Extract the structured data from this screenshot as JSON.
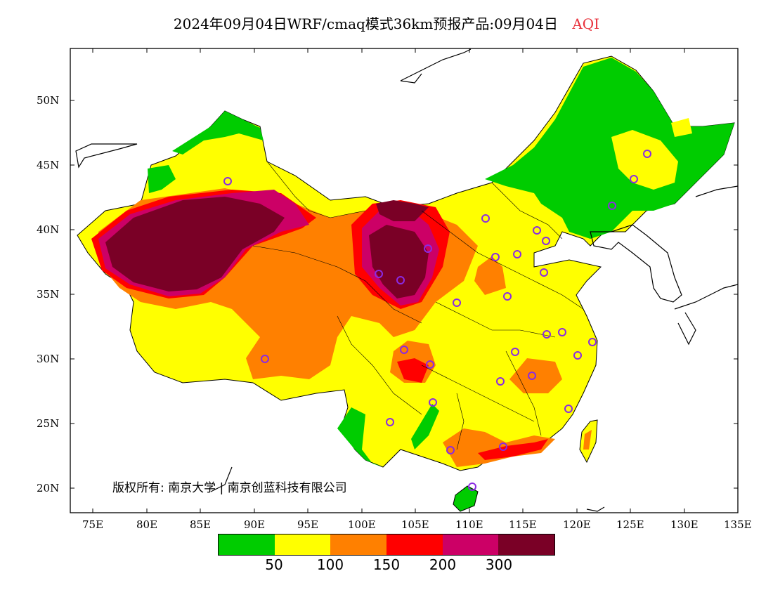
{
  "title": {
    "main": "2024年09月04日WRF/cmaq模式36km预报产品:09月04日",
    "variable": "AQI"
  },
  "map": {
    "lat_ticks": [
      "50N",
      "45N",
      "40N",
      "35N",
      "30N",
      "25N",
      "20N"
    ],
    "lon_ticks": [
      "75E",
      "80E",
      "85E",
      "90E",
      "95E",
      "100E",
      "105E",
      "110E",
      "115E",
      "120E",
      "125E",
      "130E",
      "135E"
    ],
    "copyright": "版权所有: 南京大学 | 南京创蓝科技有限公司",
    "station_marker_color": "#8a2be2"
  },
  "colorbar": {
    "colors": [
      "#00cc00",
      "#ffff00",
      "#ff8000",
      "#ff0000",
      "#cc0066",
      "#7a0026"
    ],
    "labels": [
      "50",
      "100",
      "150",
      "200",
      "300"
    ]
  }
}
